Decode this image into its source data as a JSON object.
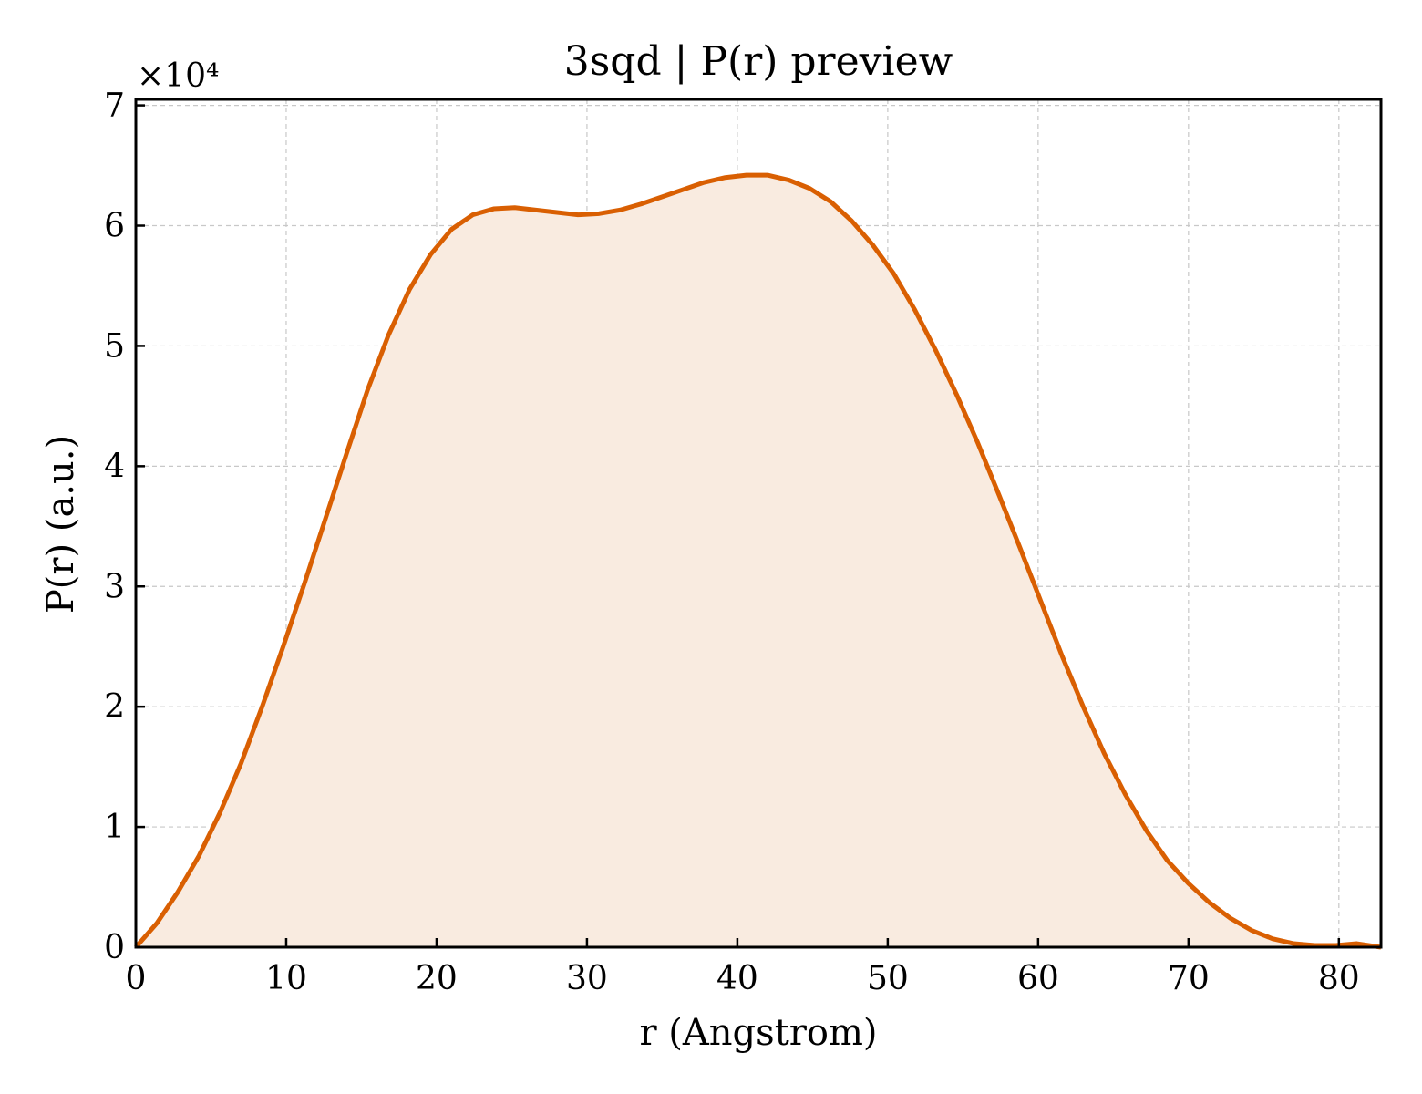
{
  "chart_data": {
    "type": "area",
    "title": "3sqd | P(r) preview",
    "xlabel": "r (Angstrom)",
    "ylabel": "P(r) (a.u.)",
    "y_offset_label": "×10⁴",
    "xlim": [
      0,
      82.8
    ],
    "ylim": [
      0,
      70500
    ],
    "xticks": [
      0,
      10,
      20,
      30,
      40,
      50,
      60,
      70,
      80
    ],
    "yticks": [
      0,
      10000,
      20000,
      30000,
      40000,
      50000,
      60000,
      70000
    ],
    "ytick_labels": [
      "0",
      "1",
      "2",
      "3",
      "4",
      "5",
      "6",
      "7"
    ],
    "grid": true,
    "line_color": "#d95f02",
    "fill_color": "#f9ebe0",
    "series": [
      {
        "x": [
          0,
          1.4,
          2.8,
          4.2,
          5.6,
          7.0,
          8.4,
          9.8,
          11.2,
          12.6,
          14.0,
          15.4,
          16.8,
          18.2,
          19.6,
          21.0,
          22.4,
          23.8,
          25.2,
          26.6,
          28.0,
          29.4,
          30.8,
          32.2,
          33.6,
          35.0,
          36.4,
          37.8,
          39.2,
          40.6,
          42.0,
          43.4,
          44.8,
          46.2,
          47.6,
          49.0,
          50.4,
          51.8,
          53.2,
          54.6,
          56.0,
          57.4,
          58.8,
          60.2,
          61.6,
          63.0,
          64.4,
          65.8,
          67.2,
          68.6,
          70.0,
          71.4,
          72.8,
          74.2,
          75.6,
          77.0,
          78.4,
          79.8,
          81.2,
          82.8
        ],
        "y": [
          0,
          2000,
          4600,
          7600,
          11200,
          15300,
          20000,
          25000,
          30200,
          35600,
          41000,
          46300,
          50900,
          54700,
          57600,
          59700,
          60900,
          61400,
          61500,
          61300,
          61100,
          60900,
          61000,
          61300,
          61800,
          62400,
          63000,
          63600,
          64000,
          64200,
          64200,
          63800,
          63100,
          62000,
          60400,
          58400,
          56000,
          53000,
          49600,
          45900,
          41900,
          37600,
          33200,
          28700,
          24200,
          20000,
          16100,
          12700,
          9700,
          7200,
          5300,
          3700,
          2400,
          1400,
          700,
          300,
          150,
          150,
          300,
          0
        ]
      }
    ]
  }
}
